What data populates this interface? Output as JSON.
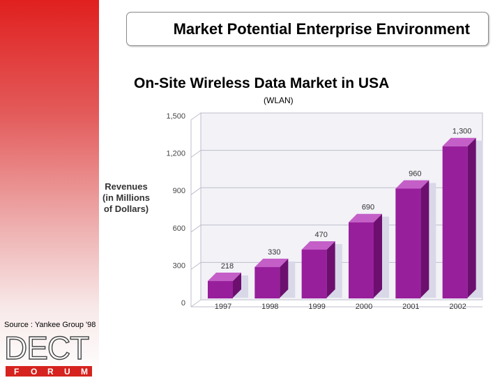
{
  "slide": {
    "title": "Market Potential Enterprise Environment",
    "subtitle": "On-Site Wireless Data Market in USA",
    "subsubtitle": "(WLAN)",
    "source": "Source : Yankee Group '98",
    "logo_text": "DECT",
    "logo_subtext": [
      "F",
      "O",
      "R",
      "U",
      "M"
    ]
  },
  "colors": {
    "bar_front": "#981f9c",
    "bar_side": "#6c0f6f",
    "bar_top": "#c45fc8",
    "shadow": "#d8d8e8",
    "sidebar": "#e0201f"
  },
  "chart_data": {
    "type": "bar",
    "title": "On-Site Wireless Data Market in USA",
    "xlabel": "",
    "ylabel": [
      "Revenues",
      "(in Millions",
      "of Dollars)"
    ],
    "categories": [
      "1997",
      "1998",
      "1999",
      "2000",
      "2001",
      "2002"
    ],
    "values": [
      218,
      330,
      470,
      690,
      960,
      1300
    ],
    "value_labels": [
      "218",
      "330",
      "470",
      "690",
      "960",
      "1,300"
    ],
    "yticks": [
      0,
      300,
      600,
      900,
      1200,
      1500
    ],
    "ytick_labels": [
      "0",
      "300",
      "600",
      "900",
      "1,200",
      "1,500"
    ],
    "ylim": [
      0,
      1500
    ],
    "grid": true
  }
}
